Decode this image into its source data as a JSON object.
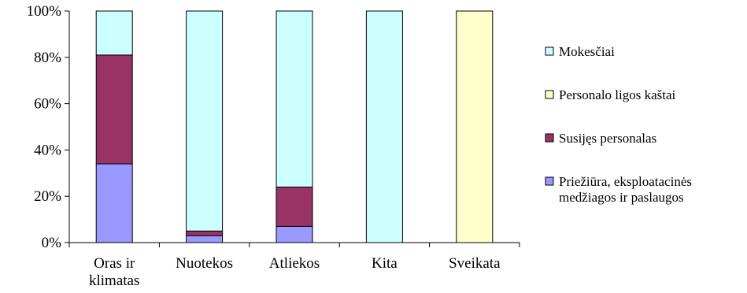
{
  "chart_data": {
    "type": "bar",
    "stacked": true,
    "percent": true,
    "categories": [
      [
        "Oras ir",
        "klimatas"
      ],
      [
        "Nuotekos"
      ],
      [
        "Atliekos"
      ],
      [
        "Kita"
      ],
      [
        "Sveikata"
      ]
    ],
    "series": [
      {
        "name": [
          "Priežiūra, eksploatacinės",
          "medžiagos ir paslaugos"
        ],
        "color": "#9999FF",
        "values": [
          34,
          3,
          7,
          0,
          0
        ]
      },
      {
        "name": [
          "Susijęs personalas"
        ],
        "color": "#993366",
        "values": [
          47,
          2,
          17,
          0,
          0
        ]
      },
      {
        "name": [
          "Personalo ligos kaštai"
        ],
        "color": "#FFFFCC",
        "values": [
          0,
          0,
          0,
          0,
          100
        ]
      },
      {
        "name": [
          "Mokesčiai"
        ],
        "color": "#CCFFFF",
        "values": [
          19,
          95,
          76,
          100,
          0
        ]
      }
    ],
    "legend_order": [
      3,
      2,
      1,
      0
    ],
    "y_ticks": [
      "0%",
      "20%",
      "40%",
      "60%",
      "80%",
      "100%"
    ],
    "ylim": [
      0,
      100
    ],
    "grid": false,
    "legend_position": "right"
  }
}
